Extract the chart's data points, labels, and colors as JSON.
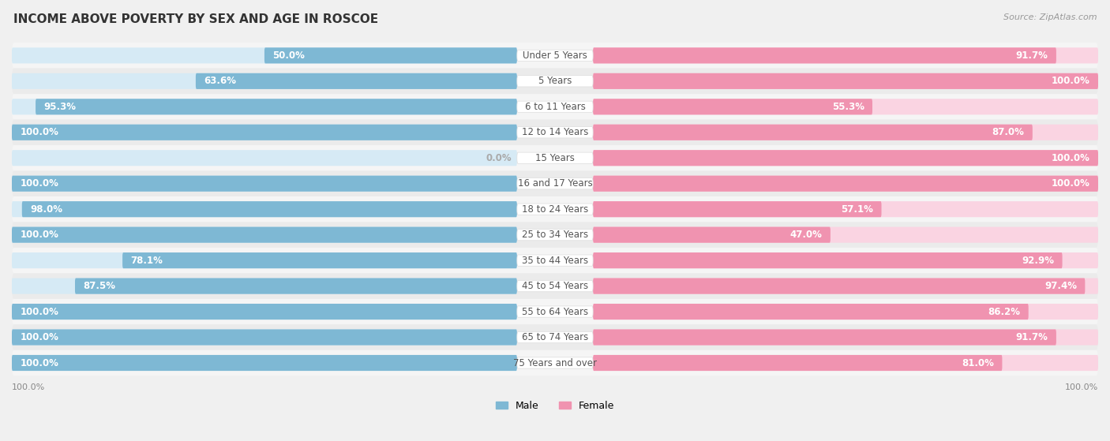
{
  "title": "INCOME ABOVE POVERTY BY SEX AND AGE IN ROSCOE",
  "source": "Source: ZipAtlas.com",
  "categories": [
    "Under 5 Years",
    "5 Years",
    "6 to 11 Years",
    "12 to 14 Years",
    "15 Years",
    "16 and 17 Years",
    "18 to 24 Years",
    "25 to 34 Years",
    "35 to 44 Years",
    "45 to 54 Years",
    "55 to 64 Years",
    "65 to 74 Years",
    "75 Years and over"
  ],
  "male_values": [
    50.0,
    63.6,
    95.3,
    100.0,
    0.0,
    100.0,
    98.0,
    100.0,
    78.1,
    87.5,
    100.0,
    100.0,
    100.0
  ],
  "female_values": [
    91.7,
    100.0,
    55.3,
    87.0,
    100.0,
    100.0,
    57.1,
    47.0,
    92.9,
    97.4,
    86.2,
    91.7,
    81.0
  ],
  "male_color": "#7eb8d4",
  "female_color": "#f093b0",
  "male_track_color": "#d6eaf5",
  "female_track_color": "#fad4e2",
  "row_colors": [
    "#f0f0f0",
    "#e8e8e8"
  ],
  "bar_height": 0.62,
  "title_fontsize": 11,
  "value_fontsize": 8.5,
  "cat_fontsize": 8.5,
  "legend_fontsize": 9,
  "source_fontsize": 8
}
